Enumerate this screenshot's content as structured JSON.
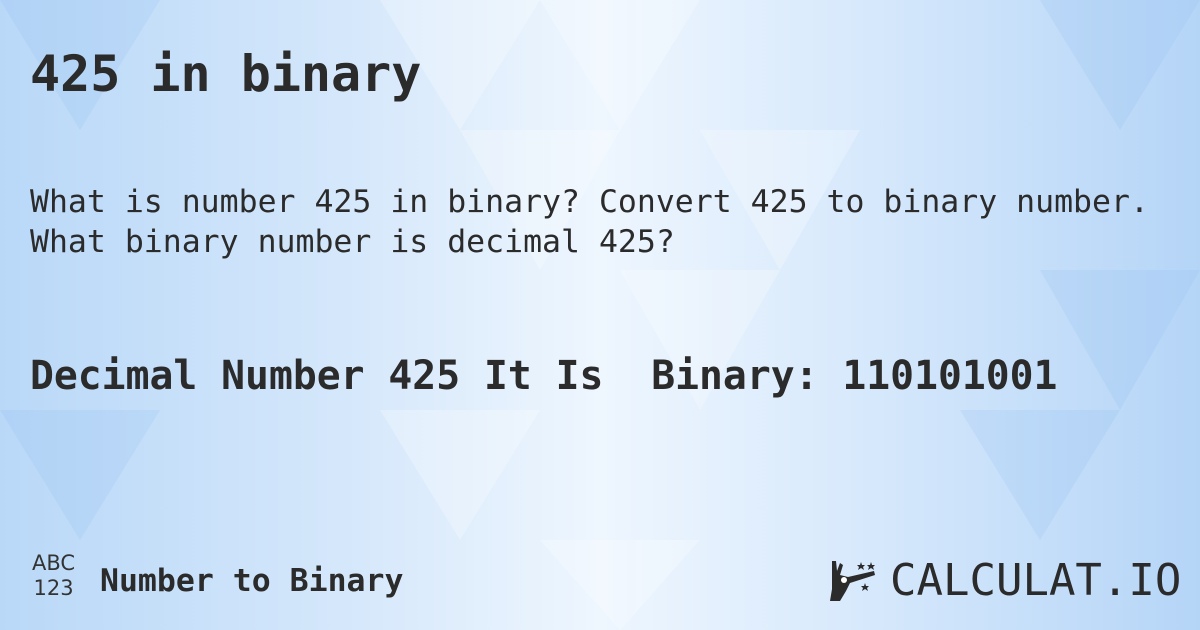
{
  "title": "425 in binary",
  "description": [
    "What is number 425 in binary? Convert 425 to binary number.",
    "What binary number is decimal 425?"
  ],
  "result": "Decimal Number 425 It Is  Binary: 110101001",
  "footer": {
    "icon_top": "ABC",
    "icon_bottom": "123",
    "category": "Number to Binary"
  },
  "logo": {
    "text": "CALCULAT.IO",
    "icon": "magic-wand-hand-icon"
  },
  "colors": {
    "text": "#2b2b2b",
    "background": "#d6e8fb"
  }
}
